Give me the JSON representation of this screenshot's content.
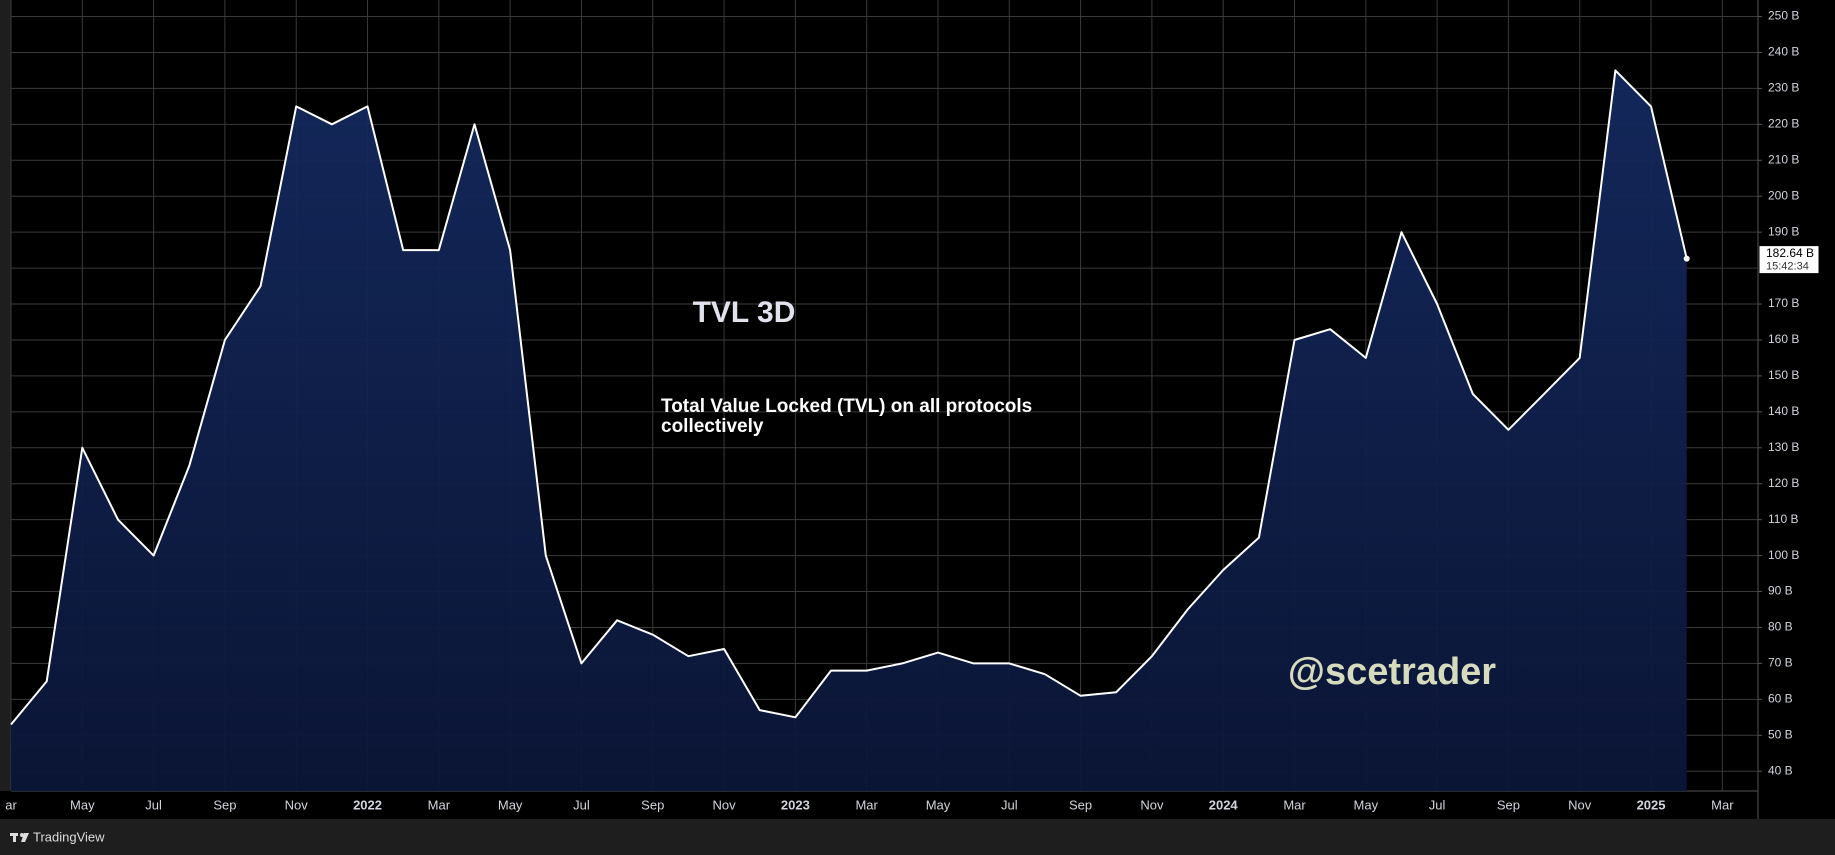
{
  "chart_data": {
    "type": "area",
    "title": "TVL 3D",
    "subtitle": "Total Value Locked (TVL) on all protocols collectively",
    "watermark": "@scetrader",
    "color": "#ffffff",
    "fill": "#0f1f4d",
    "grid": true,
    "x": [
      "2021-03",
      "2021-04",
      "2021-05",
      "2021-06",
      "2021-07",
      "2021-08",
      "2021-09",
      "2021-10",
      "2021-11",
      "2021-12",
      "2022-01",
      "2022-02",
      "2022-03",
      "2022-04",
      "2022-05",
      "2022-06",
      "2022-07",
      "2022-08",
      "2022-09",
      "2022-10",
      "2022-11",
      "2022-12",
      "2023-01",
      "2023-02",
      "2023-03",
      "2023-04",
      "2023-05",
      "2023-06",
      "2023-07",
      "2023-08",
      "2023-09",
      "2023-10",
      "2023-11",
      "2023-12",
      "2024-01",
      "2024-02",
      "2024-03",
      "2024-04",
      "2024-05",
      "2024-06",
      "2024-07",
      "2024-08",
      "2024-09",
      "2024-10",
      "2024-11",
      "2024-12",
      "2025-01",
      "2025-02"
    ],
    "values": [
      53,
      65,
      130,
      110,
      100,
      125,
      160,
      175,
      225,
      220,
      225,
      185,
      185,
      220,
      185,
      100,
      70,
      82,
      78,
      72,
      74,
      57,
      55,
      68,
      68,
      70,
      73,
      70,
      70,
      67,
      61,
      62,
      72,
      85,
      96,
      105,
      160,
      163,
      155,
      190,
      170,
      145,
      135,
      145,
      155,
      235,
      225,
      182.64
    ],
    "price_label": {
      "value": 182.64,
      "label": "182.64 B",
      "countdown": "15:42:34"
    },
    "xlim": [
      "2021-03",
      "2025-04"
    ],
    "ylim": [
      34.5,
      254.6
    ],
    "xticks": [
      {
        "value": "2021-03",
        "label": "ar"
      },
      {
        "value": "2021-05",
        "label": "May"
      },
      {
        "value": "2021-07",
        "label": "Jul"
      },
      {
        "value": "2021-09",
        "label": "Sep"
      },
      {
        "value": "2021-11",
        "label": "Nov"
      },
      {
        "value": "2022-01",
        "label": "2022"
      },
      {
        "value": "2022-03",
        "label": "Mar"
      },
      {
        "value": "2022-05",
        "label": "May"
      },
      {
        "value": "2022-07",
        "label": "Jul"
      },
      {
        "value": "2022-09",
        "label": "Sep"
      },
      {
        "value": "2022-11",
        "label": "Nov"
      },
      {
        "value": "2023-01",
        "label": "2023"
      },
      {
        "value": "2023-03",
        "label": "Mar"
      },
      {
        "value": "2023-05",
        "label": "May"
      },
      {
        "value": "2023-07",
        "label": "Jul"
      },
      {
        "value": "2023-09",
        "label": "Sep"
      },
      {
        "value": "2023-11",
        "label": "Nov"
      },
      {
        "value": "2024-01",
        "label": "2024"
      },
      {
        "value": "2024-03",
        "label": "Mar"
      },
      {
        "value": "2024-05",
        "label": "May"
      },
      {
        "value": "2024-07",
        "label": "Jul"
      },
      {
        "value": "2024-09",
        "label": "Sep"
      },
      {
        "value": "2024-11",
        "label": "Nov"
      },
      {
        "value": "2025-01",
        "label": "2025"
      },
      {
        "value": "2025-03",
        "label": "Mar"
      }
    ],
    "yticks": [
      {
        "value": 40,
        "label": "40 B"
      },
      {
        "value": 50,
        "label": "50 B"
      },
      {
        "value": 60,
        "label": "60 B"
      },
      {
        "value": 70,
        "label": "70 B"
      },
      {
        "value": 80,
        "label": "80 B"
      },
      {
        "value": 90,
        "label": "90 B"
      },
      {
        "value": 100,
        "label": "100 B"
      },
      {
        "value": 110,
        "label": "110 B"
      },
      {
        "value": 120,
        "label": "120 B"
      },
      {
        "value": 130,
        "label": "130 B"
      },
      {
        "value": 140,
        "label": "140 B"
      },
      {
        "value": 150,
        "label": "150 B"
      },
      {
        "value": 160,
        "label": "160 B"
      },
      {
        "value": 170,
        "label": "170 B"
      },
      {
        "value": 180,
        "label": "180 B"
      },
      {
        "value": 190,
        "label": "190 B"
      },
      {
        "value": 200,
        "label": "200 B"
      },
      {
        "value": 210,
        "label": "210 B"
      },
      {
        "value": 220,
        "label": "220 B"
      },
      {
        "value": 230,
        "label": "230 B"
      },
      {
        "value": 240,
        "label": "240 B"
      },
      {
        "value": 250,
        "label": "250 B"
      }
    ]
  },
  "footer": {
    "brand": "TradingView"
  }
}
